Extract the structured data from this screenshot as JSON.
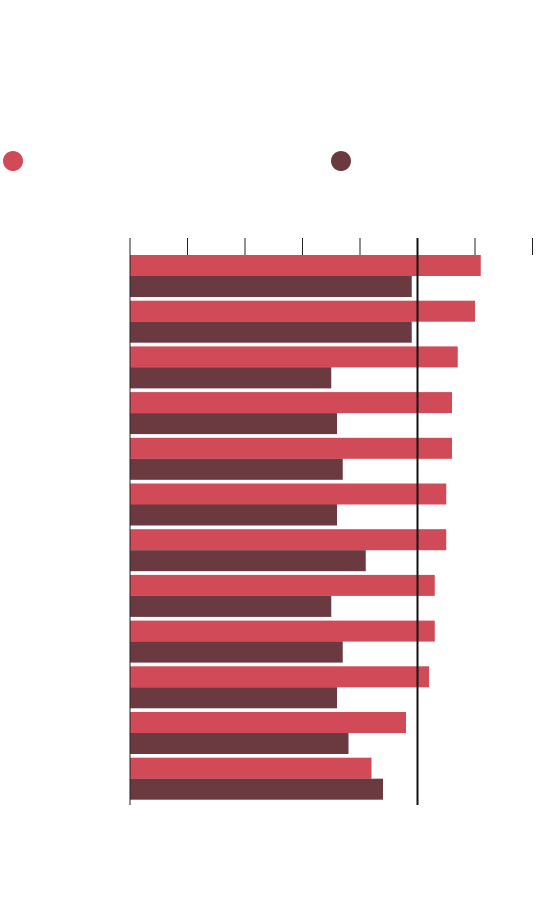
{
  "chart_data": {
    "type": "hbar",
    "categories": [
      null,
      null,
      null,
      null,
      null,
      null,
      null,
      null,
      null,
      null,
      null,
      null
    ],
    "series": [
      {
        "color": "#d04a58",
        "values": [
          6.1,
          6.0,
          5.7,
          5.6,
          5.6,
          5.5,
          5.5,
          5.3,
          5.3,
          5.2,
          4.8,
          4.2
        ]
      },
      {
        "color": "#6b3a40",
        "values": [
          4.9,
          4.9,
          3.5,
          3.6,
          3.7,
          3.6,
          4.1,
          3.5,
          3.7,
          3.6,
          3.8,
          4.4
        ]
      }
    ],
    "xlim": [
      0,
      7
    ],
    "xticks": [
      0,
      1,
      2,
      3,
      4,
      5,
      6,
      7
    ],
    "reference_line": 5
  }
}
